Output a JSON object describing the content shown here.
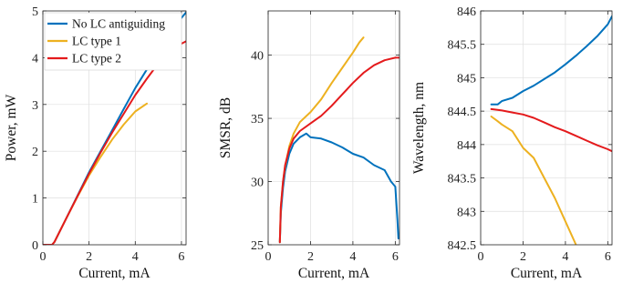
{
  "chart_data": [
    {
      "type": "line",
      "xlabel": "Current, mA",
      "ylabel": "Power, mW",
      "xlim": [
        0,
        6.2
      ],
      "ylim": [
        0,
        5
      ],
      "xticks": [
        "0",
        "2",
        "4",
        "6"
      ],
      "yticks": [
        "0",
        "1",
        "2",
        "3",
        "4",
        "5"
      ],
      "grid": true,
      "legend": "top-left",
      "series": [
        {
          "name": "No LC antiguiding",
          "color": "#0072bd",
          "x": [
            0,
            0.4,
            0.5,
            1,
            1.5,
            2,
            2.5,
            3,
            3.5,
            4,
            4.5,
            5,
            5.5,
            6,
            6.2
          ],
          "y": [
            0,
            0,
            0.06,
            0.55,
            1.05,
            1.55,
            2.0,
            2.45,
            2.9,
            3.35,
            3.75,
            4.15,
            4.5,
            4.85,
            4.97
          ]
        },
        {
          "name": "LC type 1",
          "color": "#edb120",
          "x": [
            0,
            0.4,
            0.5,
            1,
            1.5,
            2,
            2.5,
            3,
            3.5,
            4,
            4.5
          ],
          "y": [
            0,
            0,
            0.06,
            0.55,
            1.03,
            1.48,
            1.88,
            2.25,
            2.57,
            2.85,
            3.02
          ]
        },
        {
          "name": "LC type 2",
          "color": "#e41a1c",
          "x": [
            0,
            0.4,
            0.5,
            1,
            1.5,
            2,
            2.5,
            3,
            3.5,
            4,
            4.5,
            5,
            5.5,
            6,
            6.2
          ],
          "y": [
            0,
            0,
            0.06,
            0.55,
            1.04,
            1.52,
            1.97,
            2.4,
            2.8,
            3.2,
            3.55,
            3.88,
            4.15,
            4.3,
            4.35
          ]
        }
      ]
    },
    {
      "type": "line",
      "xlabel": "Current, mA",
      "ylabel": "SMSR, dB",
      "xlim": [
        0,
        6.2
      ],
      "ylim": [
        25,
        43.5
      ],
      "xticks": [
        "0",
        "2",
        "4",
        "6"
      ],
      "yticks": [
        "25",
        "30",
        "35",
        "40"
      ],
      "grid": true,
      "series": [
        {
          "name": "",
          "color": "#0072bd",
          "x": [
            0.55,
            0.6,
            0.7,
            0.8,
            1.0,
            1.2,
            1.5,
            1.8,
            2.0,
            2.5,
            3.0,
            3.5,
            4.0,
            4.5,
            5.0,
            5.5,
            5.8,
            6.0,
            6.1,
            6.15
          ],
          "y": [
            25.2,
            27.5,
            29.5,
            30.8,
            32.2,
            33.0,
            33.5,
            33.8,
            33.5,
            33.4,
            33.1,
            32.7,
            32.2,
            31.9,
            31.3,
            30.9,
            30.0,
            29.6,
            27.0,
            25.5
          ]
        },
        {
          "name": "",
          "color": "#edb120",
          "x": [
            0.55,
            0.6,
            0.7,
            0.8,
            1.0,
            1.2,
            1.5,
            2.0,
            2.5,
            3.0,
            3.5,
            4.0,
            4.3,
            4.5
          ],
          "y": [
            25.2,
            28.0,
            30.0,
            31.2,
            32.8,
            33.8,
            34.7,
            35.5,
            36.5,
            37.8,
            39.0,
            40.2,
            41.0,
            41.4
          ]
        },
        {
          "name": "",
          "color": "#e41a1c",
          "x": [
            0.55,
            0.6,
            0.7,
            0.8,
            1.0,
            1.2,
            1.5,
            2.0,
            2.5,
            3.0,
            3.5,
            4.0,
            4.5,
            5.0,
            5.5,
            6.0,
            6.2
          ],
          "y": [
            25.2,
            28.0,
            30.0,
            31.3,
            32.6,
            33.4,
            34.0,
            34.6,
            35.2,
            36.0,
            36.9,
            37.8,
            38.6,
            39.2,
            39.6,
            39.8,
            39.8
          ]
        }
      ]
    },
    {
      "type": "line",
      "xlabel": "Current, mA",
      "ylabel": "Wavelength, nm",
      "xlim": [
        0,
        6.2
      ],
      "ylim": [
        842.5,
        846
      ],
      "xticks": [
        "0",
        "2",
        "4",
        "6"
      ],
      "yticks": [
        "842.5",
        "843",
        "843.5",
        "844",
        "844.5",
        "845",
        "845.5",
        "846"
      ],
      "grid": true,
      "series": [
        {
          "name": "",
          "color": "#0072bd",
          "x": [
            0.5,
            0.8,
            1.0,
            1.5,
            2.0,
            2.5,
            3.0,
            3.5,
            4.0,
            4.5,
            5.0,
            5.5,
            6.0,
            6.2
          ],
          "y": [
            844.6,
            844.6,
            844.65,
            844.7,
            844.8,
            844.88,
            844.98,
            845.08,
            845.2,
            845.33,
            845.47,
            845.62,
            845.8,
            845.92
          ]
        },
        {
          "name": "",
          "color": "#edb120",
          "x": [
            0.5,
            0.8,
            1.0,
            1.5,
            2.0,
            2.5,
            3.0,
            3.5,
            4.0,
            4.5
          ],
          "y": [
            844.42,
            844.35,
            844.3,
            844.2,
            843.95,
            843.8,
            843.5,
            843.2,
            842.85,
            842.5
          ]
        },
        {
          "name": "",
          "color": "#e41a1c",
          "x": [
            0.5,
            0.8,
            1.0,
            1.5,
            2.0,
            2.5,
            3.0,
            3.5,
            4.0,
            4.5,
            5.0,
            5.5,
            6.0,
            6.2
          ],
          "y": [
            844.53,
            844.52,
            844.51,
            844.48,
            844.45,
            844.4,
            844.33,
            844.26,
            844.2,
            844.13,
            844.06,
            843.99,
            843.93,
            843.9
          ]
        }
      ]
    }
  ]
}
